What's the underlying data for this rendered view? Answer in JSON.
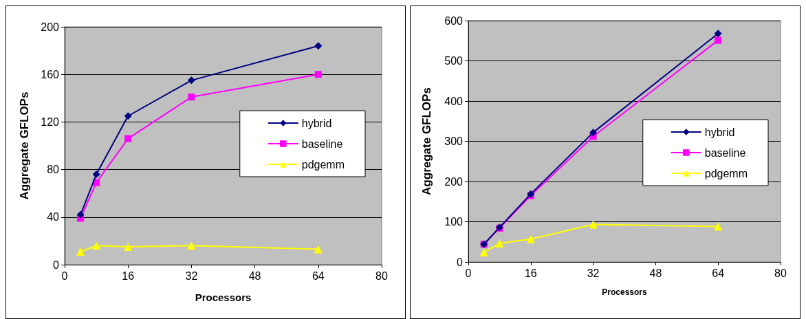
{
  "chart_data": [
    {
      "type": "line",
      "xlabel": "Processors",
      "ylabel": "Aggregate GFLOPs",
      "xlim": [
        0,
        80
      ],
      "xticks": [
        0,
        16,
        32,
        48,
        64,
        80
      ],
      "ylim": [
        0,
        200
      ],
      "yticks": [
        0,
        40,
        80,
        120,
        160,
        200
      ],
      "grid": "y",
      "legend": "right",
      "series": [
        {
          "name": "hybrid",
          "color": "#000080",
          "marker": "diamond",
          "x": [
            4,
            8,
            16,
            32,
            64
          ],
          "values": [
            42,
            76,
            125,
            155,
            184
          ]
        },
        {
          "name": "baseline",
          "color": "#ff00ff",
          "marker": "square",
          "x": [
            4,
            8,
            16,
            32,
            64
          ],
          "values": [
            39,
            69,
            106,
            141,
            160
          ]
        },
        {
          "name": "pdgemm",
          "color": "#ffff00",
          "marker": "triangle",
          "x": [
            4,
            8,
            16,
            32,
            64
          ],
          "values": [
            11,
            16,
            15,
            16,
            13
          ]
        }
      ]
    },
    {
      "type": "line",
      "xlabel": "Processors",
      "ylabel": "Aggregate GFLOPs",
      "xlim": [
        0,
        80
      ],
      "xticks": [
        0,
        16,
        32,
        48,
        64,
        80
      ],
      "ylim": [
        0,
        600
      ],
      "yticks": [
        0,
        100,
        200,
        300,
        400,
        500,
        600
      ],
      "grid": "y",
      "legend": "right",
      "series": [
        {
          "name": "hybrid",
          "color": "#000080",
          "marker": "diamond",
          "x": [
            4,
            8,
            16,
            32,
            64
          ],
          "values": [
            44,
            86,
            169,
            322,
            568
          ]
        },
        {
          "name": "baseline",
          "color": "#ff00ff",
          "marker": "square",
          "x": [
            4,
            8,
            16,
            32,
            64
          ],
          "values": [
            44,
            84,
            165,
            312,
            551
          ]
        },
        {
          "name": "pdgemm",
          "color": "#ffff00",
          "marker": "triangle",
          "x": [
            4,
            8,
            16,
            32,
            64
          ],
          "values": [
            24,
            46,
            57,
            93,
            88
          ]
        }
      ]
    }
  ]
}
